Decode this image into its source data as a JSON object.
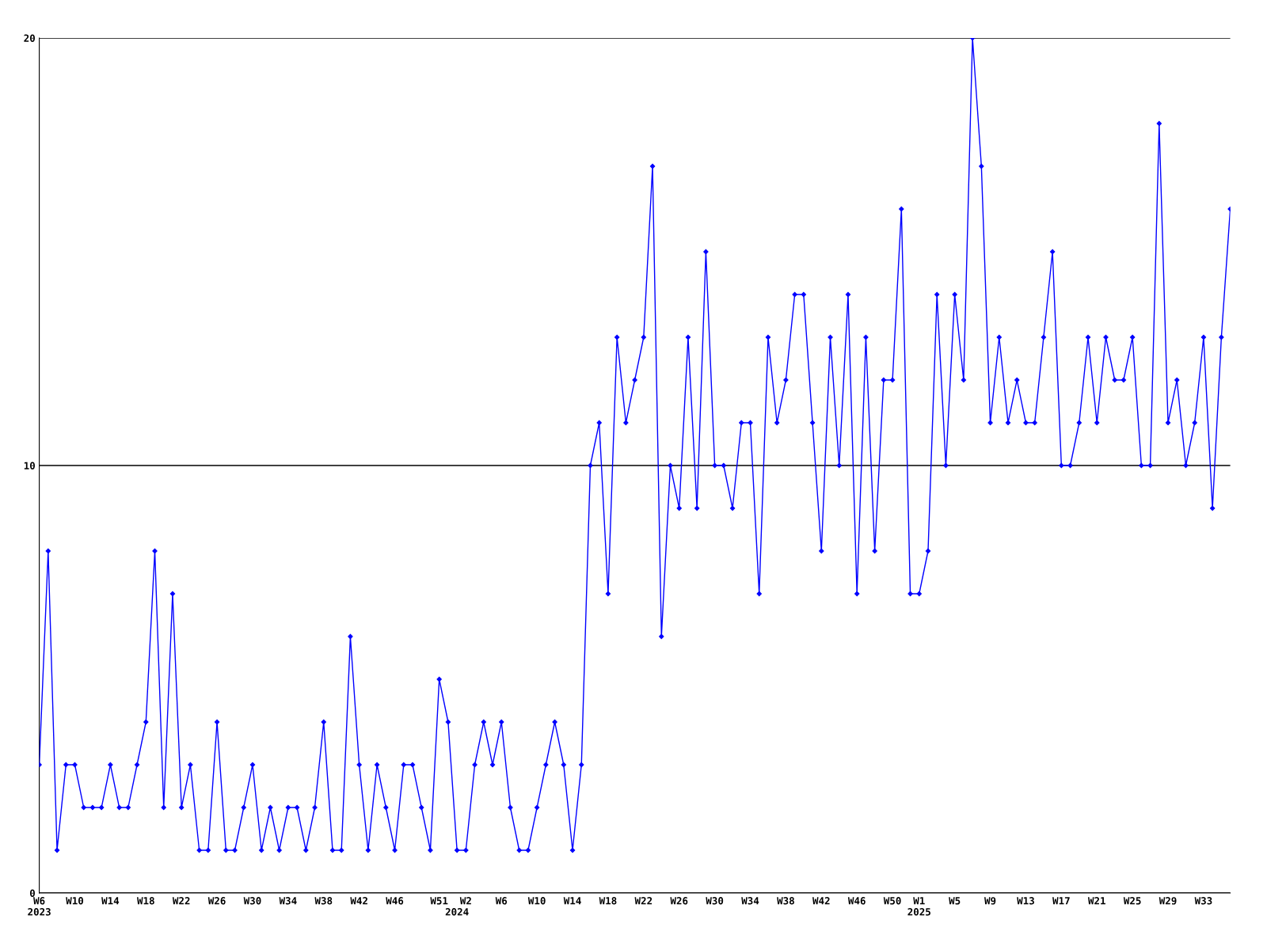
{
  "chart_data": {
    "type": "line",
    "categories": [
      "W6\n2023",
      null,
      null,
      null,
      "W10",
      null,
      null,
      null,
      "W14",
      null,
      null,
      null,
      "W18",
      null,
      null,
      null,
      "W22",
      null,
      null,
      null,
      "W26",
      null,
      null,
      null,
      "W30",
      null,
      null,
      null,
      "W34",
      null,
      null,
      null,
      "W38",
      null,
      null,
      null,
      "W42",
      null,
      null,
      null,
      "W46",
      null,
      null,
      null,
      null,
      "W51",
      null,
      "\n2024",
      "W2",
      null,
      null,
      null,
      "W6",
      null,
      null,
      null,
      "W10",
      null,
      null,
      null,
      "W14",
      null,
      null,
      null,
      "W18",
      null,
      null,
      null,
      "W22",
      null,
      null,
      null,
      "W26",
      null,
      null,
      null,
      "W30",
      null,
      null,
      null,
      "W34",
      null,
      null,
      null,
      "W38",
      null,
      null,
      null,
      "W42",
      null,
      null,
      null,
      "W46",
      null,
      null,
      null,
      "W50",
      null,
      null,
      "W1\n2025",
      null,
      null,
      null,
      "W5",
      null,
      null,
      null,
      "W9",
      null,
      null,
      null,
      "W13",
      null,
      null,
      null,
      "W17",
      null,
      null,
      null,
      "W21",
      null,
      null,
      null,
      "W25",
      null,
      null,
      null,
      "W29",
      null,
      null,
      null,
      "W33",
      null,
      null,
      null
    ],
    "series": [
      {
        "color": "#0000ff",
        "values": [
          3,
          8,
          1,
          3,
          3,
          2,
          2,
          2,
          3,
          2,
          2,
          3,
          4,
          8,
          2,
          7,
          2,
          3,
          1,
          1,
          4,
          1,
          1,
          2,
          3,
          1,
          2,
          1,
          2,
          2,
          1,
          2,
          4,
          1,
          1,
          6,
          3,
          1,
          3,
          2,
          1,
          3,
          3,
          2,
          1,
          5,
          4,
          1,
          1,
          3,
          4,
          3,
          4,
          2,
          1,
          1,
          2,
          3,
          4,
          3,
          1,
          3,
          10,
          11,
          7,
          13,
          11,
          12,
          13,
          17,
          6,
          10,
          9,
          13,
          9,
          15,
          10,
          10,
          9,
          11,
          11,
          7,
          13,
          11,
          12,
          14,
          14,
          11,
          8,
          13,
          10,
          14,
          7,
          13,
          8,
          12,
          12,
          16,
          7,
          7,
          8,
          14,
          10,
          14,
          12,
          20,
          17,
          11,
          13,
          11,
          12,
          11,
          11,
          13,
          15,
          10,
          10,
          11,
          13,
          11,
          13,
          12,
          12,
          13,
          10,
          10,
          18,
          11,
          12,
          10,
          11,
          13,
          9,
          13,
          16
        ]
      }
    ],
    "ylim": [
      0,
      20
    ],
    "yticks": [
      0,
      10,
      20
    ],
    "grid": "y",
    "marker": "diamond",
    "line_style": "solid",
    "legend": false
  }
}
